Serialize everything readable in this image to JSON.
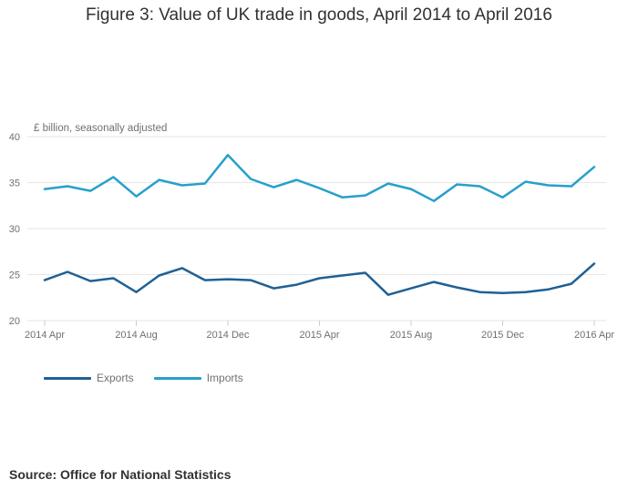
{
  "title": "Figure 3: Value of UK trade in goods, April 2014 to April 2016",
  "source": "Source: Office for National Statistics",
  "colors": {
    "exports": "#206095",
    "imports": "#27A0CC",
    "grid": "#e6e6e6",
    "tick": "#707071"
  },
  "chart_data": {
    "type": "line",
    "title": "Figure 3: Value of UK trade in goods, April 2014 to April 2016",
    "xlabel": "",
    "ylabel": "£ billion, seasonally adjusted",
    "ylim": [
      20,
      40
    ],
    "yticks": [
      "20",
      "25",
      "30",
      "35",
      "40"
    ],
    "x": [
      "2014 Apr",
      "2014 May",
      "2014 Jun",
      "2014 Jul",
      "2014 Aug",
      "2014 Sep",
      "2014 Oct",
      "2014 Nov",
      "2014 Dec",
      "2015 Jan",
      "2015 Feb",
      "2015 Mar",
      "2015 Apr",
      "2015 May",
      "2015 Jun",
      "2015 Jul",
      "2015 Aug",
      "2015 Sep",
      "2015 Oct",
      "2015 Nov",
      "2015 Dec",
      "2016 Jan",
      "2016 Feb",
      "2016 Mar",
      "2016 Apr"
    ],
    "xticks": [
      "2014 Apr",
      "2014 Aug",
      "2014 Dec",
      "2015 Apr",
      "2015 Aug",
      "2015 Dec",
      "2016 Apr"
    ],
    "grid": true,
    "legend": "bottom-left",
    "series": [
      {
        "name": "Exports",
        "values": [
          24.4,
          25.3,
          24.3,
          24.6,
          23.1,
          24.9,
          25.7,
          24.4,
          24.5,
          24.4,
          23.5,
          23.9,
          24.6,
          24.9,
          25.2,
          22.8,
          23.5,
          24.2,
          23.6,
          23.1,
          23.0,
          23.1,
          23.4,
          24.0,
          26.2
        ]
      },
      {
        "name": "Imports",
        "values": [
          34.3,
          34.6,
          34.1,
          35.6,
          33.5,
          35.3,
          34.7,
          34.9,
          38.0,
          35.4,
          34.5,
          35.3,
          34.4,
          33.4,
          33.6,
          34.9,
          34.3,
          33.0,
          34.8,
          34.6,
          33.4,
          35.1,
          34.7,
          34.6,
          36.7
        ]
      }
    ]
  }
}
